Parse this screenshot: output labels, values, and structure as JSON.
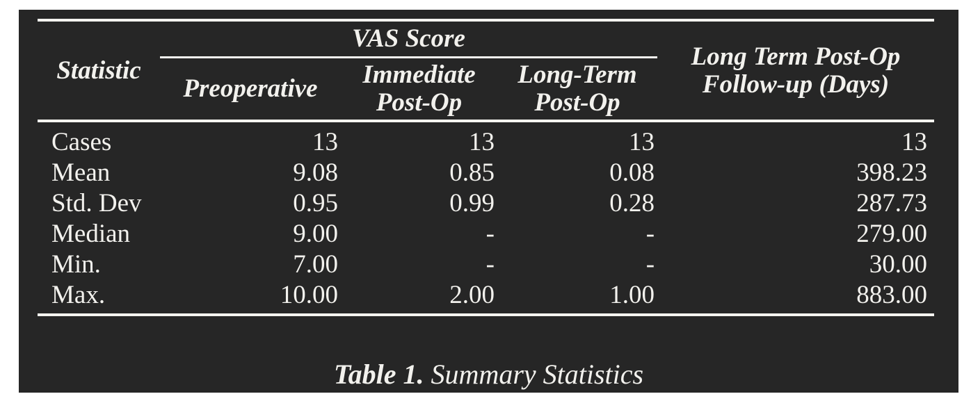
{
  "colors": {
    "page_background": "#ffffff",
    "panel_background": "#262626",
    "text": "#f2f1ed",
    "rules": "#f5f4f0"
  },
  "table": {
    "header": {
      "statistic": "Statistic",
      "vas_group": "VAS Score",
      "columns": [
        {
          "lines": [
            "Preoperative"
          ]
        },
        {
          "lines": [
            "Immediate",
            "Post-Op"
          ]
        },
        {
          "lines": [
            "Long-Term",
            "Post-Op"
          ]
        }
      ],
      "followup": {
        "lines": [
          "Long Term Post-Op",
          "Follow-up (Days)"
        ]
      }
    },
    "rows": [
      {
        "label": "Cases",
        "values": [
          "13",
          "13",
          "13",
          "13"
        ]
      },
      {
        "label": "Mean",
        "values": [
          "9.08",
          "0.85",
          "0.08",
          "398.23"
        ]
      },
      {
        "label": "Std. Dev",
        "values": [
          "0.95",
          "0.99",
          "0.28",
          "287.73"
        ]
      },
      {
        "label": "Median",
        "values": [
          "9.00",
          "-",
          "-",
          "279.00"
        ]
      },
      {
        "label": "Min.",
        "values": [
          "7.00",
          "-",
          "-",
          "30.00"
        ]
      },
      {
        "label": "Max.",
        "values": [
          "10.00",
          "2.00",
          "1.00",
          "883.00"
        ]
      }
    ],
    "caption": {
      "label": "Table 1.",
      "text": "Summary Statistics"
    }
  },
  "chart_data": {
    "type": "table",
    "title": "Table 1. Summary Statistics",
    "columns": [
      "Statistic",
      "VAS Score - Preoperative",
      "VAS Score - Immediate Post-Op",
      "VAS Score - Long-Term Post-Op",
      "Long Term Post-Op Follow-up (Days)"
    ],
    "rows": [
      [
        "Cases",
        "13",
        "13",
        "13",
        "13"
      ],
      [
        "Mean",
        "9.08",
        "0.85",
        "0.08",
        "398.23"
      ],
      [
        "Std. Dev",
        "0.95",
        "0.99",
        "0.28",
        "287.73"
      ],
      [
        "Median",
        "9.00",
        "-",
        "-",
        "279.00"
      ],
      [
        "Min.",
        "7.00",
        "-",
        "-",
        "30.00"
      ],
      [
        "Max.",
        "10.00",
        "2.00",
        "1.00",
        "883.00"
      ]
    ]
  }
}
